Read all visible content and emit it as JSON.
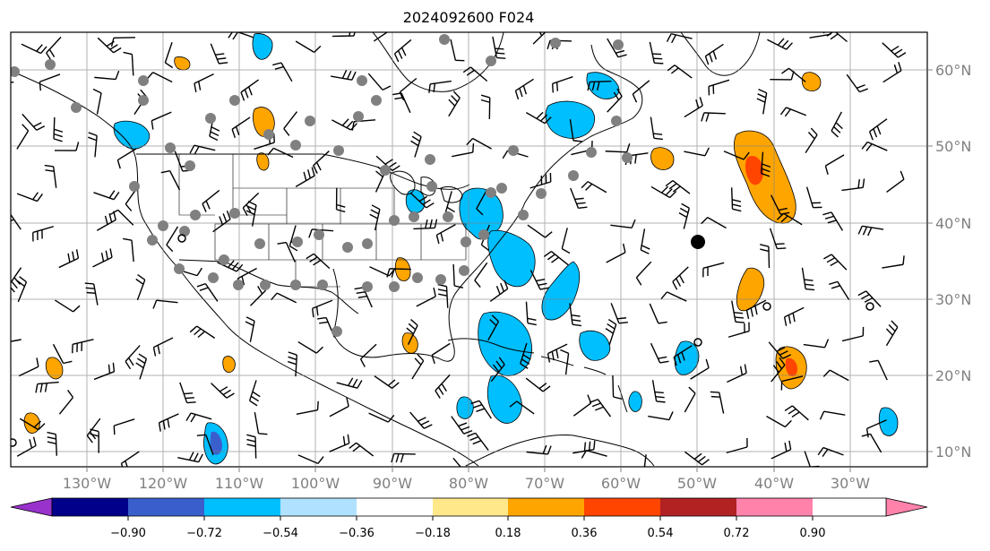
{
  "title": "2024092600 F024",
  "map": {
    "lon_labels": [
      "130°W",
      "120°W",
      "110°W",
      "100°W",
      "90°W",
      "80°W",
      "70°W",
      "60°W",
      "50°W",
      "40°W",
      "30°W"
    ],
    "lat_labels": [
      "60°N",
      "50°N",
      "40°N",
      "30°N",
      "20°N",
      "10°N"
    ],
    "lon_range": [
      -136,
      -16
    ],
    "lat_range": [
      8,
      65
    ],
    "gridlines": true
  },
  "colorbar": {
    "ticks": [
      "−0.90",
      "−0.72",
      "−0.54",
      "−0.36",
      "−0.18",
      "0.18",
      "0.36",
      "0.54",
      "0.72",
      "0.90"
    ],
    "colors": [
      "#9932cc",
      "#00008b",
      "#3a5fcd",
      "#00bfff",
      "#b0e2ff",
      "#ffffff",
      "#ffe88a",
      "#ffa500",
      "#ff4500",
      "#b22222",
      "#ff82ab"
    ],
    "extend": "both"
  },
  "layers": {
    "wind_barbs": "black",
    "station_markers": "gray",
    "positive_shading": "#ffa500",
    "negative_shading": "#00bfff"
  }
}
